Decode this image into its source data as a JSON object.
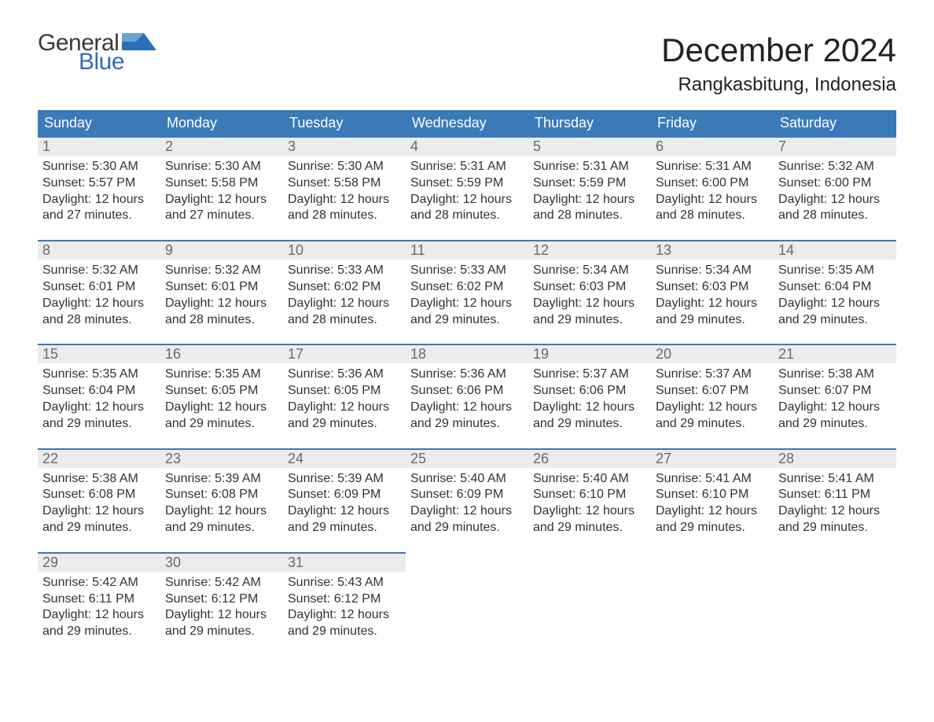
{
  "brand": {
    "general": "General",
    "blue": "Blue",
    "flag_color": "#2d6fb5"
  },
  "title": "December 2024",
  "location": "Rangkasbitung, Indonesia",
  "colors": {
    "header_bg": "#3a7ab8",
    "header_text": "#ffffff",
    "daynum_bg": "#ececec",
    "daynum_border": "#3a7ab8",
    "daynum_text": "#6a6a6a",
    "body_text": "#333333",
    "page_bg": "#ffffff"
  },
  "weekdays": [
    "Sunday",
    "Monday",
    "Tuesday",
    "Wednesday",
    "Thursday",
    "Friday",
    "Saturday"
  ],
  "weeks": [
    [
      {
        "n": "1",
        "sr": "Sunrise: 5:30 AM",
        "ss": "Sunset: 5:57 PM",
        "d1": "Daylight: 12 hours",
        "d2": "and 27 minutes."
      },
      {
        "n": "2",
        "sr": "Sunrise: 5:30 AM",
        "ss": "Sunset: 5:58 PM",
        "d1": "Daylight: 12 hours",
        "d2": "and 27 minutes."
      },
      {
        "n": "3",
        "sr": "Sunrise: 5:30 AM",
        "ss": "Sunset: 5:58 PM",
        "d1": "Daylight: 12 hours",
        "d2": "and 28 minutes."
      },
      {
        "n": "4",
        "sr": "Sunrise: 5:31 AM",
        "ss": "Sunset: 5:59 PM",
        "d1": "Daylight: 12 hours",
        "d2": "and 28 minutes."
      },
      {
        "n": "5",
        "sr": "Sunrise: 5:31 AM",
        "ss": "Sunset: 5:59 PM",
        "d1": "Daylight: 12 hours",
        "d2": "and 28 minutes."
      },
      {
        "n": "6",
        "sr": "Sunrise: 5:31 AM",
        "ss": "Sunset: 6:00 PM",
        "d1": "Daylight: 12 hours",
        "d2": "and 28 minutes."
      },
      {
        "n": "7",
        "sr": "Sunrise: 5:32 AM",
        "ss": "Sunset: 6:00 PM",
        "d1": "Daylight: 12 hours",
        "d2": "and 28 minutes."
      }
    ],
    [
      {
        "n": "8",
        "sr": "Sunrise: 5:32 AM",
        "ss": "Sunset: 6:01 PM",
        "d1": "Daylight: 12 hours",
        "d2": "and 28 minutes."
      },
      {
        "n": "9",
        "sr": "Sunrise: 5:32 AM",
        "ss": "Sunset: 6:01 PM",
        "d1": "Daylight: 12 hours",
        "d2": "and 28 minutes."
      },
      {
        "n": "10",
        "sr": "Sunrise: 5:33 AM",
        "ss": "Sunset: 6:02 PM",
        "d1": "Daylight: 12 hours",
        "d2": "and 28 minutes."
      },
      {
        "n": "11",
        "sr": "Sunrise: 5:33 AM",
        "ss": "Sunset: 6:02 PM",
        "d1": "Daylight: 12 hours",
        "d2": "and 29 minutes."
      },
      {
        "n": "12",
        "sr": "Sunrise: 5:34 AM",
        "ss": "Sunset: 6:03 PM",
        "d1": "Daylight: 12 hours",
        "d2": "and 29 minutes."
      },
      {
        "n": "13",
        "sr": "Sunrise: 5:34 AM",
        "ss": "Sunset: 6:03 PM",
        "d1": "Daylight: 12 hours",
        "d2": "and 29 minutes."
      },
      {
        "n": "14",
        "sr": "Sunrise: 5:35 AM",
        "ss": "Sunset: 6:04 PM",
        "d1": "Daylight: 12 hours",
        "d2": "and 29 minutes."
      }
    ],
    [
      {
        "n": "15",
        "sr": "Sunrise: 5:35 AM",
        "ss": "Sunset: 6:04 PM",
        "d1": "Daylight: 12 hours",
        "d2": "and 29 minutes."
      },
      {
        "n": "16",
        "sr": "Sunrise: 5:35 AM",
        "ss": "Sunset: 6:05 PM",
        "d1": "Daylight: 12 hours",
        "d2": "and 29 minutes."
      },
      {
        "n": "17",
        "sr": "Sunrise: 5:36 AM",
        "ss": "Sunset: 6:05 PM",
        "d1": "Daylight: 12 hours",
        "d2": "and 29 minutes."
      },
      {
        "n": "18",
        "sr": "Sunrise: 5:36 AM",
        "ss": "Sunset: 6:06 PM",
        "d1": "Daylight: 12 hours",
        "d2": "and 29 minutes."
      },
      {
        "n": "19",
        "sr": "Sunrise: 5:37 AM",
        "ss": "Sunset: 6:06 PM",
        "d1": "Daylight: 12 hours",
        "d2": "and 29 minutes."
      },
      {
        "n": "20",
        "sr": "Sunrise: 5:37 AM",
        "ss": "Sunset: 6:07 PM",
        "d1": "Daylight: 12 hours",
        "d2": "and 29 minutes."
      },
      {
        "n": "21",
        "sr": "Sunrise: 5:38 AM",
        "ss": "Sunset: 6:07 PM",
        "d1": "Daylight: 12 hours",
        "d2": "and 29 minutes."
      }
    ],
    [
      {
        "n": "22",
        "sr": "Sunrise: 5:38 AM",
        "ss": "Sunset: 6:08 PM",
        "d1": "Daylight: 12 hours",
        "d2": "and 29 minutes."
      },
      {
        "n": "23",
        "sr": "Sunrise: 5:39 AM",
        "ss": "Sunset: 6:08 PM",
        "d1": "Daylight: 12 hours",
        "d2": "and 29 minutes."
      },
      {
        "n": "24",
        "sr": "Sunrise: 5:39 AM",
        "ss": "Sunset: 6:09 PM",
        "d1": "Daylight: 12 hours",
        "d2": "and 29 minutes."
      },
      {
        "n": "25",
        "sr": "Sunrise: 5:40 AM",
        "ss": "Sunset: 6:09 PM",
        "d1": "Daylight: 12 hours",
        "d2": "and 29 minutes."
      },
      {
        "n": "26",
        "sr": "Sunrise: 5:40 AM",
        "ss": "Sunset: 6:10 PM",
        "d1": "Daylight: 12 hours",
        "d2": "and 29 minutes."
      },
      {
        "n": "27",
        "sr": "Sunrise: 5:41 AM",
        "ss": "Sunset: 6:10 PM",
        "d1": "Daylight: 12 hours",
        "d2": "and 29 minutes."
      },
      {
        "n": "28",
        "sr": "Sunrise: 5:41 AM",
        "ss": "Sunset: 6:11 PM",
        "d1": "Daylight: 12 hours",
        "d2": "and 29 minutes."
      }
    ],
    [
      {
        "n": "29",
        "sr": "Sunrise: 5:42 AM",
        "ss": "Sunset: 6:11 PM",
        "d1": "Daylight: 12 hours",
        "d2": "and 29 minutes."
      },
      {
        "n": "30",
        "sr": "Sunrise: 5:42 AM",
        "ss": "Sunset: 6:12 PM",
        "d1": "Daylight: 12 hours",
        "d2": "and 29 minutes."
      },
      {
        "n": "31",
        "sr": "Sunrise: 5:43 AM",
        "ss": "Sunset: 6:12 PM",
        "d1": "Daylight: 12 hours",
        "d2": "and 29 minutes."
      },
      null,
      null,
      null,
      null
    ]
  ]
}
